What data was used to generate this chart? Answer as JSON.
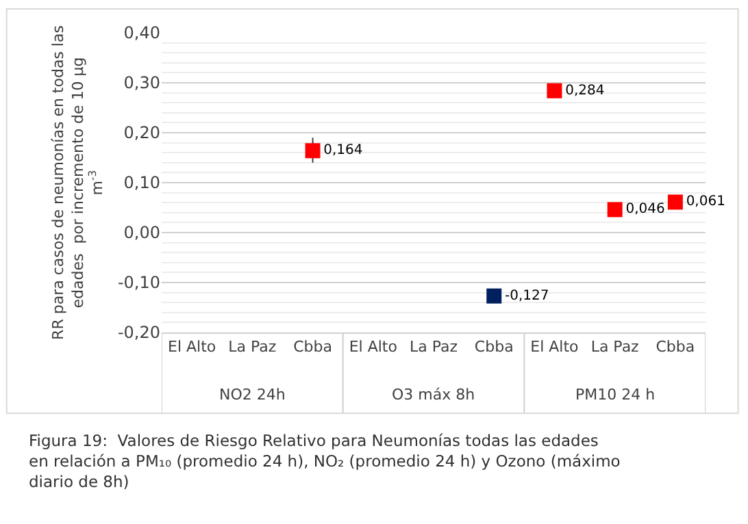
{
  "chart_data": {
    "type": "scatter",
    "categories": [
      "El Alto",
      "La Paz",
      "Cbba",
      "El Alto",
      "La Paz",
      "Cbba",
      "El Alto",
      "La Paz",
      "Cbba"
    ],
    "series": [
      {
        "colors": [
          "#ff0000",
          "#ff0000",
          "#ff0000",
          "#002060",
          "#002060",
          "#002060",
          "#ff0000",
          "#ff0000",
          "#ff0000"
        ],
        "values": [
          null,
          null,
          0.164,
          null,
          null,
          -0.127,
          0.284,
          0.046,
          0.061
        ],
        "value_labels": [
          null,
          null,
          "0,164",
          null,
          null,
          "-0,127",
          "0,284",
          "0,046",
          "0,061"
        ],
        "errors": [
          null,
          null,
          [
            0.14,
            0.19
          ],
          null,
          null,
          null,
          null,
          null,
          null
        ]
      }
    ],
    "ylabel": "RR para casos de neumonías en todas las edades  por incremento de 10 µg m$^{-3}$",
    "ylim": [
      -0.2,
      0.4
    ],
    "yticks": [
      {
        "value": -0.2,
        "label": "-0,20"
      },
      {
        "value": -0.1,
        "label": "-0,10"
      },
      {
        "value": 0.0,
        "label": "0,00"
      },
      {
        "value": 0.1,
        "label": "0,10"
      },
      {
        "value": 0.2,
        "label": "0,20"
      },
      {
        "value": 0.3,
        "label": "0,30"
      },
      {
        "value": 0.4,
        "label": "0,40"
      }
    ],
    "grid": "y",
    "marker": "square",
    "annotations": [
      "NO2 24h",
      "O3 máx 8h",
      "PM10 24 h",
      "Figura 19:  Valores de Riesgo Relativo para Neumonías todas las edades en relación a PM₁₀ (promedio 24 h), NO₂ (promedio 24 h) y Ozono (máximo diario de 8h)"
    ]
  }
}
